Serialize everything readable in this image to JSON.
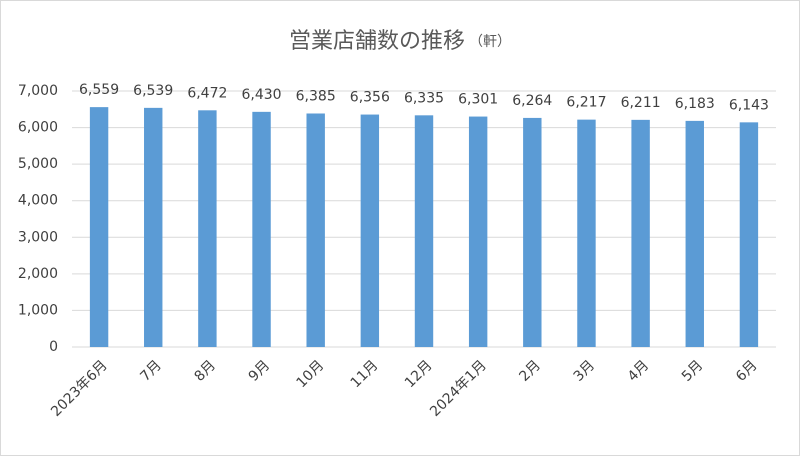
{
  "chart_data": {
    "type": "bar",
    "title": "営業店舗数の推移",
    "title_unit": "（軒）",
    "categories": [
      "2023年6月",
      "7月",
      "8月",
      "9月",
      "10月",
      "11月",
      "12月",
      "2024年1月",
      "2月",
      "3月",
      "4月",
      "5月",
      "6月"
    ],
    "values": [
      6559,
      6539,
      6472,
      6430,
      6385,
      6356,
      6335,
      6301,
      6264,
      6217,
      6211,
      6183,
      6143
    ],
    "value_labels": [
      "6,559",
      "6,539",
      "6,472",
      "6,430",
      "6,385",
      "6,356",
      "6,335",
      "6,301",
      "6,264",
      "6,217",
      "6,211",
      "6,183",
      "6,143"
    ],
    "color": "#5b9bd5",
    "ylim": [
      0,
      7000
    ],
    "yticks": [
      0,
      {
        "value": 1000,
        "label": "1,000"
      },
      {
        "value": 2000,
        "label": "2,000"
      },
      {
        "value": 3000,
        "label": "3,000"
      },
      {
        "value": 4000,
        "label": "4,000"
      },
      {
        "value": 5000,
        "label": "5,000"
      },
      {
        "value": 6000,
        "label": "6,000"
      },
      {
        "value": 7000,
        "label": "7,000"
      }
    ],
    "grid": true
  }
}
